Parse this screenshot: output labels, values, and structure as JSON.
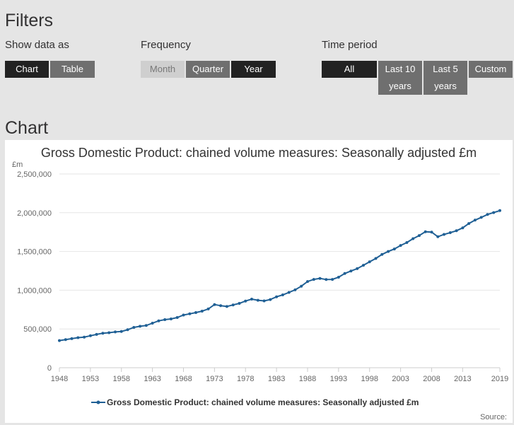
{
  "filters": {
    "heading": "Filters",
    "show_data_as": {
      "label": "Show data as",
      "options": [
        {
          "label": "Chart",
          "selected": true
        },
        {
          "label": "Table",
          "selected": false
        }
      ]
    },
    "frequency": {
      "label": "Frequency",
      "options": [
        {
          "label": "Month",
          "selected": false,
          "disabled": true
        },
        {
          "label": "Quarter",
          "selected": false
        },
        {
          "label": "Year",
          "selected": true
        }
      ]
    },
    "time_period": {
      "label": "Time period",
      "options": [
        {
          "label": "All",
          "selected": true
        },
        {
          "label": "Last 10",
          "label2": "years",
          "selected": false
        },
        {
          "label": "Last 5",
          "label2": "years",
          "selected": false
        },
        {
          "label": "Custom",
          "selected": false
        }
      ]
    }
  },
  "chart_section": {
    "heading": "Chart",
    "source_label": "Source:"
  },
  "colors": {
    "series": "#206095",
    "selected_button": "#222222",
    "unselected_button": "#6f6f6f"
  },
  "chart_data": {
    "type": "line",
    "title": "Gross Domestic Product: chained volume measures: Seasonally adjusted £m",
    "ylabel": "£m",
    "xlabel": "",
    "ylim": [
      0,
      2500000
    ],
    "yticks": [
      0,
      500000,
      1000000,
      1500000,
      2000000,
      2500000
    ],
    "ytick_labels": [
      "0",
      "500,000",
      "1,000,000",
      "1,500,000",
      "2,000,000",
      "2,500,000"
    ],
    "xticks": [
      1948,
      1953,
      1958,
      1963,
      1968,
      1973,
      1978,
      1983,
      1988,
      1993,
      1998,
      2003,
      2008,
      2013,
      2019
    ],
    "xlim": [
      1948,
      2019
    ],
    "grid": true,
    "legend_position": "bottom",
    "series": [
      {
        "name": "Gross Domestic Product: chained volume measures: Seasonally adjusted £m",
        "x": [
          1948,
          1949,
          1950,
          1951,
          1952,
          1953,
          1954,
          1955,
          1956,
          1957,
          1958,
          1959,
          1960,
          1961,
          1962,
          1963,
          1964,
          1965,
          1966,
          1967,
          1968,
          1969,
          1970,
          1971,
          1972,
          1973,
          1974,
          1975,
          1976,
          1977,
          1978,
          1979,
          1980,
          1981,
          1982,
          1983,
          1984,
          1985,
          1986,
          1987,
          1988,
          1989,
          1990,
          1991,
          1992,
          1993,
          1994,
          1995,
          1996,
          1997,
          1998,
          1999,
          2000,
          2001,
          2002,
          2003,
          2004,
          2005,
          2006,
          2007,
          2008,
          2009,
          2010,
          2011,
          2012,
          2013,
          2014,
          2015,
          2016,
          2017,
          2018,
          2019
        ],
        "values": [
          350000,
          362000,
          375000,
          388000,
          395000,
          412000,
          430000,
          445000,
          452000,
          462000,
          468000,
          490000,
          520000,
          535000,
          545000,
          575000,
          605000,
          620000,
          630000,
          648000,
          680000,
          695000,
          712000,
          730000,
          758000,
          815000,
          800000,
          790000,
          810000,
          830000,
          860000,
          885000,
          870000,
          862000,
          880000,
          915000,
          940000,
          972000,
          1005000,
          1052000,
          1112000,
          1140000,
          1152000,
          1138000,
          1140000,
          1168000,
          1215000,
          1248000,
          1278000,
          1322000,
          1367000,
          1410000,
          1462000,
          1500000,
          1532000,
          1578000,
          1615000,
          1665000,
          1705000,
          1755000,
          1750000,
          1690000,
          1720000,
          1743000,
          1767000,
          1805000,
          1860000,
          1904000,
          1940000,
          1977000,
          2002000,
          2027000
        ]
      }
    ]
  }
}
